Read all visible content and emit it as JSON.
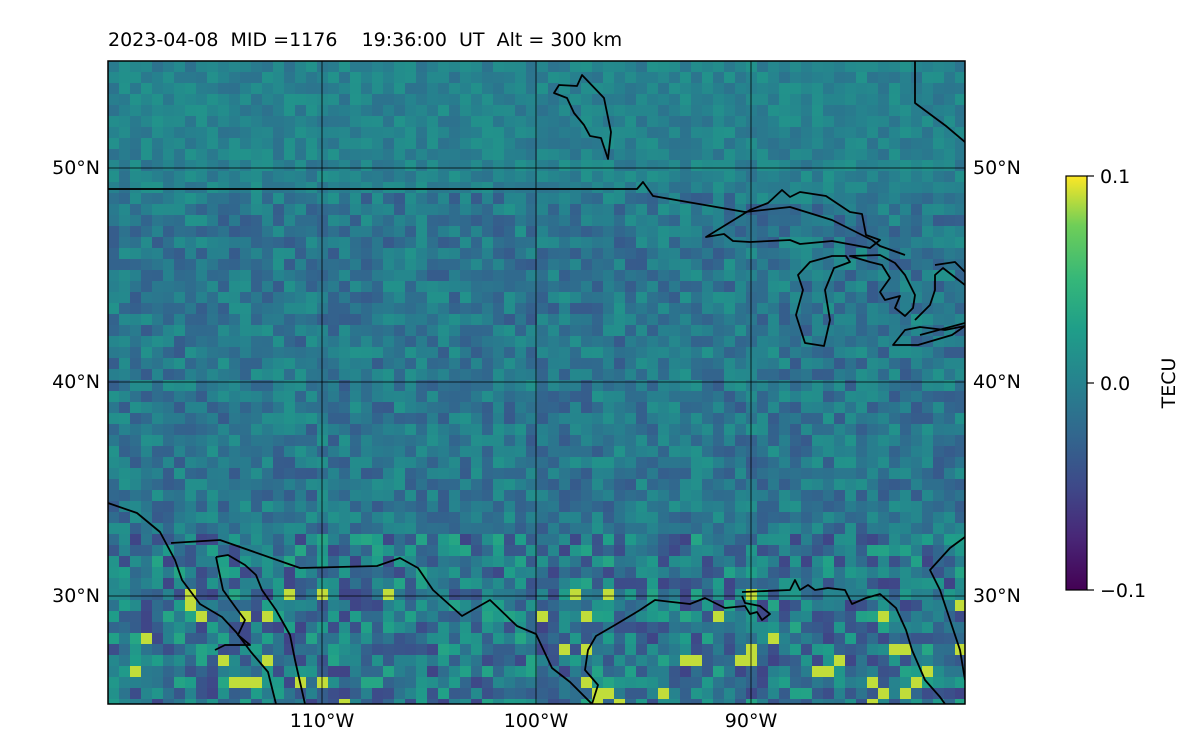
{
  "title": "2023-04-08  MID =1176    19:36:00  UT  Alt = 300 km",
  "map": {
    "lon_range": [
      -120,
      -80
    ],
    "lat_range": [
      25,
      55
    ],
    "lat_ticks": [
      {
        "value": 50,
        "label": "50°N"
      },
      {
        "value": 40,
        "label": "40°N"
      },
      {
        "value": 30,
        "label": "30°N"
      }
    ],
    "lon_ticks": [
      {
        "value": -110,
        "label": "110°W"
      },
      {
        "value": -100,
        "label": "100°W"
      },
      {
        "value": -90,
        "label": "90°W"
      }
    ],
    "gridlines": true,
    "coastlines": true,
    "colormap": "viridis"
  },
  "colorbar": {
    "label": "TECU",
    "range": [
      -0.1,
      0.1
    ],
    "ticks": [
      {
        "value": 0.1,
        "label": "0.1"
      },
      {
        "value": 0.0,
        "label": "0.0"
      },
      {
        "value": -0.1,
        "label": "−0.1"
      }
    ],
    "colors": [
      "#440154",
      "#3b528b",
      "#21908d",
      "#5dc963",
      "#fde725"
    ]
  }
}
